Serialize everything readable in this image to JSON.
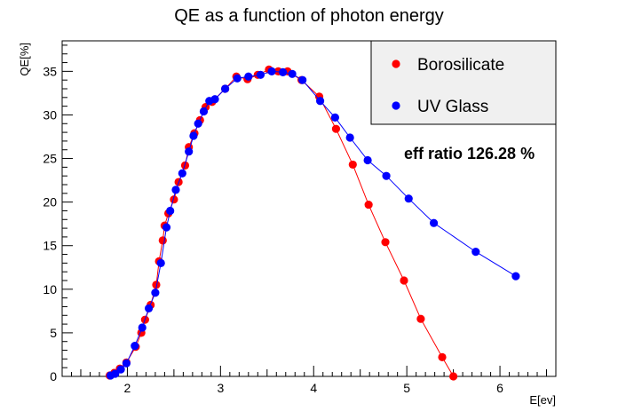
{
  "chart_data": {
    "type": "scatter",
    "title": "QE as a function of photon energy",
    "xlabel": "E[ev]",
    "ylabel": "QE[%]",
    "xlim": [
      1.3,
      6.6
    ],
    "ylim": [
      0,
      38.5
    ],
    "x_ticks": [
      2,
      3,
      4,
      5,
      6
    ],
    "y_ticks": [
      0,
      5,
      10,
      15,
      20,
      25,
      30,
      35
    ],
    "grid": false,
    "legend_position": "top-right",
    "annotation": "eff ratio 126.28 %",
    "series": [
      {
        "name": "Borosilicate",
        "color": "#ff0000",
        "x": [
          1.81,
          1.86,
          1.92,
          1.99,
          2.09,
          2.15,
          2.19,
          2.25,
          2.31,
          2.34,
          2.38,
          2.4,
          2.44,
          2.5,
          2.55,
          2.62,
          2.66,
          2.72,
          2.78,
          2.84,
          2.91,
          3.05,
          3.17,
          3.29,
          3.4,
          3.52,
          3.62,
          3.72,
          3.87,
          4.06,
          4.24,
          4.42,
          4.59,
          4.77,
          4.97,
          5.15,
          5.38,
          5.5
        ],
        "y": [
          0.1,
          0.4,
          0.9,
          1.6,
          3.4,
          5.0,
          6.5,
          8.2,
          10.5,
          13.2,
          15.6,
          17.3,
          18.7,
          20.3,
          22.3,
          24.2,
          26.3,
          27.9,
          29.4,
          30.9,
          31.5,
          33.0,
          34.4,
          34.1,
          34.6,
          35.2,
          35.0,
          35.0,
          34.0,
          32.1,
          28.4,
          24.3,
          19.7,
          15.4,
          11.0,
          6.6,
          2.2,
          0.0
        ]
      },
      {
        "name": "UV Glass",
        "color": "#0000ff",
        "x": [
          1.82,
          1.87,
          1.93,
          1.99,
          2.08,
          2.16,
          2.23,
          2.3,
          2.36,
          2.42,
          2.46,
          2.52,
          2.59,
          2.66,
          2.71,
          2.76,
          2.82,
          2.88,
          2.94,
          3.05,
          3.18,
          3.3,
          3.43,
          3.55,
          3.67,
          3.77,
          3.88,
          4.07,
          4.23,
          4.39,
          4.58,
          4.78,
          5.02,
          5.29,
          5.74,
          6.17
        ],
        "y": [
          0.1,
          0.3,
          0.8,
          1.5,
          3.5,
          5.6,
          7.8,
          9.6,
          13.0,
          17.1,
          19.0,
          21.4,
          23.3,
          25.8,
          27.6,
          29.0,
          30.4,
          31.6,
          31.8,
          33.0,
          34.2,
          34.4,
          34.6,
          35.0,
          34.9,
          34.7,
          34.0,
          31.6,
          29.7,
          27.4,
          24.8,
          23.0,
          20.4,
          17.6,
          14.3,
          11.5
        ]
      }
    ]
  }
}
